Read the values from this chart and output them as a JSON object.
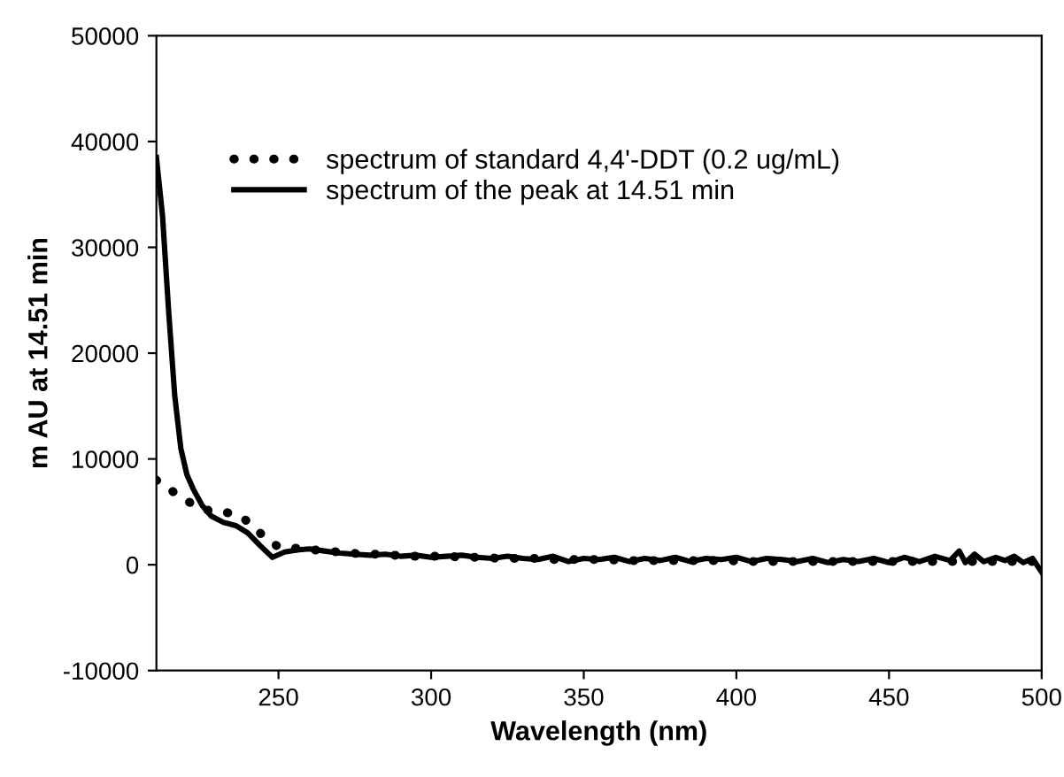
{
  "chart_data": {
    "type": "line",
    "xlabel": "Wavelength (nm)",
    "ylabel": "m AU at 14.51 min",
    "xlim": [
      210,
      500
    ],
    "xticks": [
      250,
      300,
      350,
      400,
      450,
      500
    ],
    "ylim": [
      -10000,
      50000
    ],
    "yticks": [
      -10000,
      0,
      10000,
      20000,
      30000,
      40000,
      50000
    ],
    "grid": false,
    "legend": "top left",
    "series": [
      {
        "name": "spectrum of standard 4,4'-DDT (0.2 ug/mL)",
        "color": "#000000",
        "line_style": "dotted",
        "x": [
          210,
          214,
          218,
          222,
          226,
          230,
          234,
          238,
          242,
          246,
          250,
          254,
          258,
          262,
          266,
          270,
          274,
          278,
          282,
          286,
          290,
          294,
          298,
          302,
          306,
          310,
          314,
          318,
          322,
          326,
          330,
          334,
          338,
          342,
          346,
          350,
          354,
          358,
          362,
          366,
          370,
          374,
          378,
          382,
          386,
          390,
          394,
          398,
          402,
          406,
          410,
          414,
          418,
          422,
          426,
          430,
          434,
          438,
          442,
          446,
          450,
          454,
          458,
          462,
          466,
          470,
          474,
          478,
          482,
          486,
          490,
          494,
          498
        ],
        "values": [
          8000,
          7200,
          6400,
          5700,
          5200,
          5000,
          4900,
          4500,
          3600,
          2400,
          1700,
          1600,
          1500,
          1400,
          1300,
          1200,
          1100,
          1000,
          1000,
          900,
          900,
          800,
          800,
          800,
          800,
          700,
          700,
          700,
          600,
          600,
          600,
          600,
          500,
          500,
          500,
          500,
          500,
          500,
          400,
          400,
          400,
          400,
          400,
          400,
          400,
          400,
          400,
          400,
          300,
          300,
          300,
          300,
          300,
          300,
          300,
          300,
          300,
          300,
          300,
          300,
          300,
          300,
          300,
          300,
          300,
          300,
          300,
          300,
          300,
          300,
          300,
          300,
          300
        ]
      },
      {
        "name": "spectrum of the peak at 14.51 min",
        "color": "#000000",
        "line_style": "solid",
        "x": [
          210,
          212,
          214,
          216,
          218,
          220,
          222,
          225,
          228,
          232,
          236,
          240,
          244,
          248,
          252,
          256,
          260,
          265,
          270,
          275,
          280,
          285,
          290,
          295,
          300,
          305,
          310,
          315,
          320,
          325,
          330,
          335,
          340,
          345,
          350,
          355,
          360,
          365,
          370,
          375,
          380,
          385,
          390,
          395,
          400,
          405,
          410,
          415,
          420,
          425,
          430,
          435,
          440,
          445,
          450,
          455,
          460,
          465,
          470,
          473,
          475,
          478,
          481,
          485,
          488,
          491,
          494,
          497,
          500
        ],
        "values": [
          38500,
          33000,
          24000,
          16000,
          11000,
          8500,
          7200,
          5600,
          4600,
          4000,
          3700,
          3000,
          1800,
          700,
          1200,
          1400,
          1500,
          1300,
          1100,
          1000,
          900,
          1000,
          800,
          900,
          700,
          800,
          900,
          700,
          600,
          800,
          600,
          500,
          800,
          300,
          600,
          500,
          700,
          300,
          600,
          400,
          700,
          300,
          600,
          500,
          700,
          300,
          600,
          500,
          300,
          600,
          200,
          500,
          300,
          600,
          200,
          700,
          300,
          800,
          400,
          1300,
          200,
          1000,
          300,
          700,
          400,
          800,
          200,
          600,
          -700
        ]
      }
    ]
  }
}
